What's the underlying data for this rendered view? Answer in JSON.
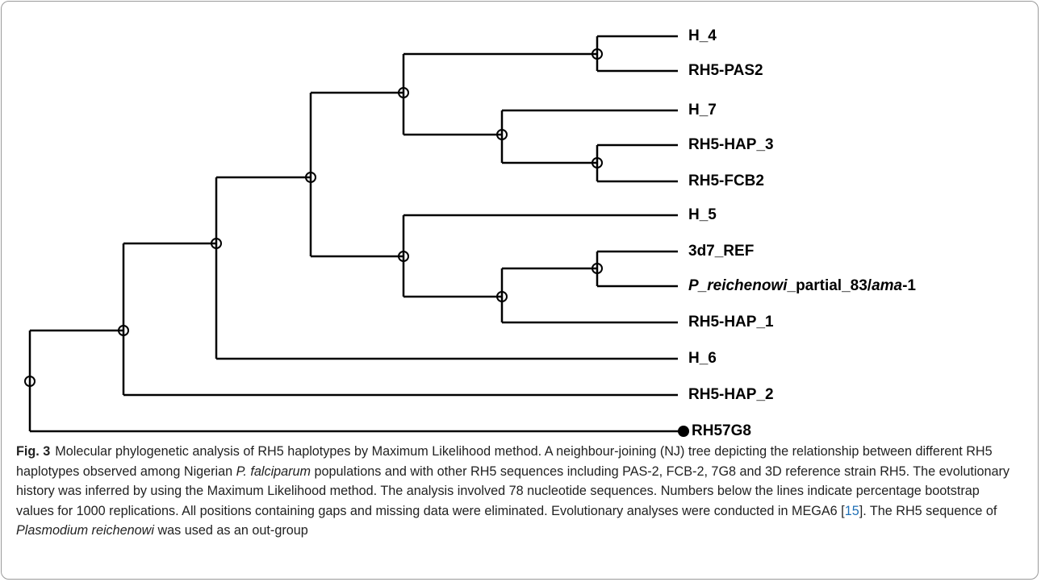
{
  "figure": {
    "leaves": [
      "H_4",
      "RH5-PAS2",
      "H_7",
      "RH5-HAP_3",
      "RH5-FCB2",
      "H_5",
      "3d7_REF",
      [
        "P_reichenowi",
        "_partial_83/",
        "ama",
        "-1"
      ],
      "RH5-HAP_1",
      "H_6",
      "RH5-HAP_2",
      "RH57G8"
    ],
    "caption": {
      "label": "Fig. 3",
      "parts": [
        "Molecular phylogenetic analysis of RH5 haplotypes by Maximum Likelihood method. A neighbour-joining (NJ) tree depicting the relationship between different RH5 haplotypes observed among Nigerian ",
        "P. falciparum",
        " populations and with other RH5 sequences including PAS-2, FCB-2, 7G8 and 3D reference strain RH5. The evolutionary history was inferred by using the Maximum Likelihood method. The analysis involved 78 nucleotide sequences. Numbers below the lines indicate percentage bootstrap values for 1000 replications. All positions containing gaps and missing data were eliminated. Evolutionary analyses were conducted in MEGA6 [",
        "15",
        "]. The RH5 sequence of ",
        "Plasmodium reichenowi",
        " was used as an out-group"
      ]
    }
  }
}
